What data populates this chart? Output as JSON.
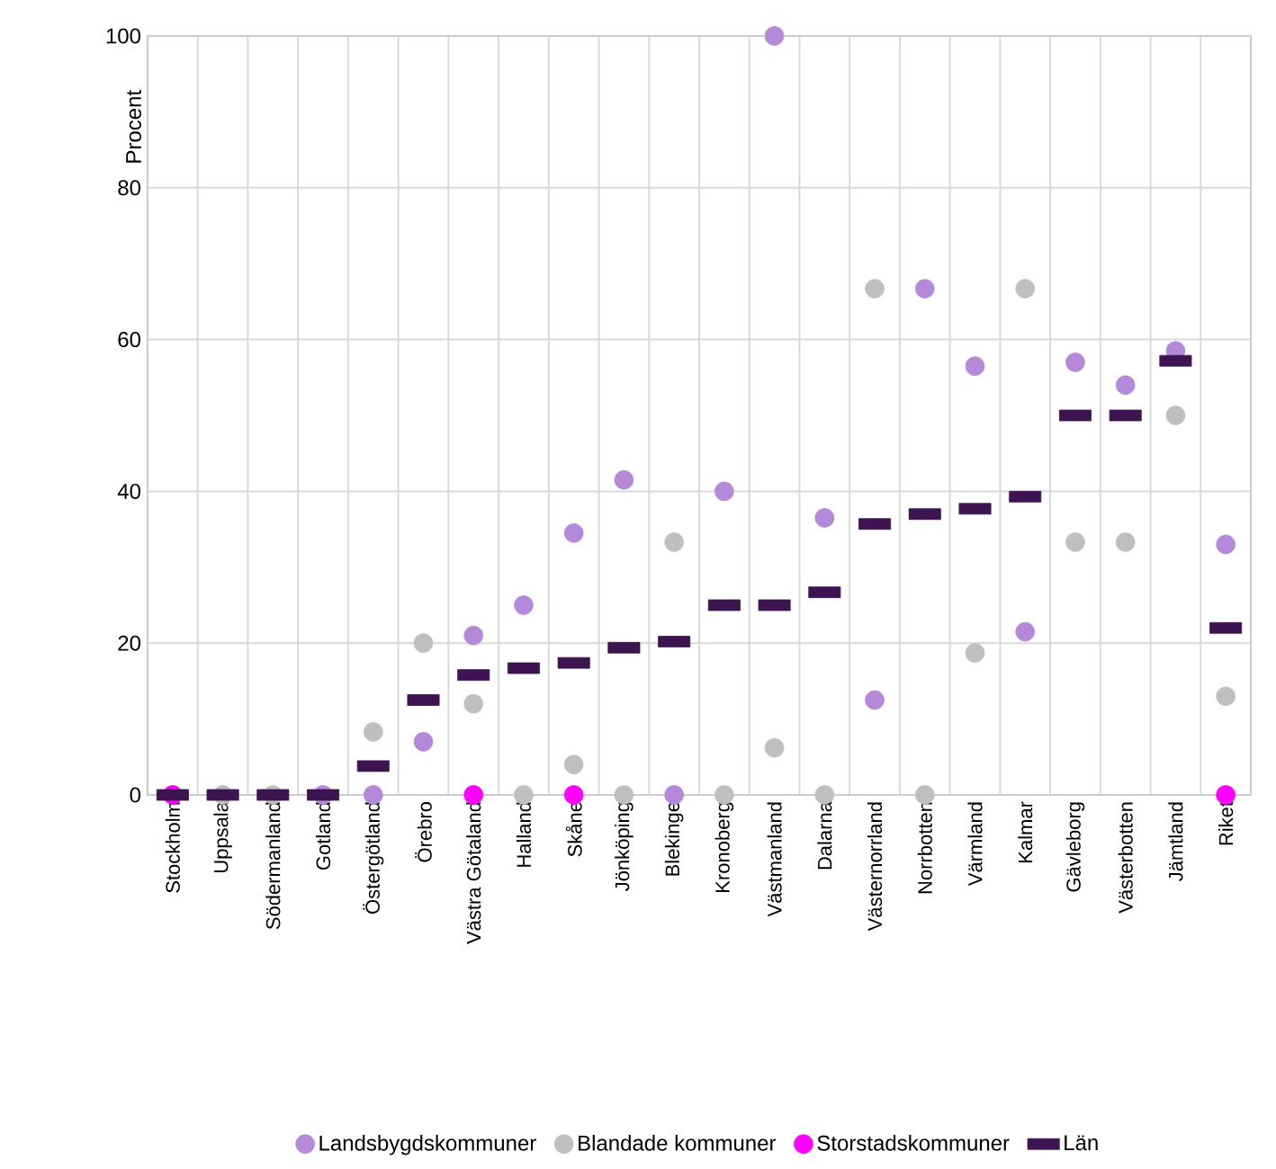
{
  "chart_data": {
    "type": "scatter",
    "ylabel": "Procent",
    "categories": [
      "Stockholm",
      "Uppsala",
      "Södermanland",
      "Gotland",
      "Östergötland",
      "Örebro",
      "Västra Götaland",
      "Halland",
      "Skåne",
      "Jönköping",
      "Blekinge",
      "Kronoberg",
      "Västmanland",
      "Dalarna",
      "Västernorrland",
      "Norrbotten",
      "Värmland",
      "Kalmar",
      "Gävleborg",
      "Västerbotten",
      "Jämtland",
      "Riket"
    ],
    "series": [
      {
        "name": "Landsbygdskommuner",
        "color": "#b489d9",
        "marker": "circle",
        "values": [
          null,
          null,
          null,
          0,
          0,
          7,
          21,
          25,
          34.5,
          41.5,
          0,
          40,
          100,
          36.5,
          12.5,
          66.7,
          56.5,
          21.5,
          57,
          54,
          58.5,
          33
        ]
      },
      {
        "name": "Blandade kommuner",
        "color": "#bfbfbf",
        "marker": "circle",
        "values": [
          null,
          0,
          0,
          null,
          8.3,
          20,
          12,
          0,
          4,
          0,
          33.3,
          0,
          6.2,
          0,
          66.7,
          0,
          18.7,
          66.7,
          33.3,
          33.3,
          50,
          13
        ]
      },
      {
        "name": "Storstadskommuner",
        "color": "#ff00ff",
        "marker": "circle",
        "values": [
          0,
          null,
          null,
          null,
          null,
          null,
          0,
          null,
          0,
          null,
          null,
          null,
          null,
          null,
          null,
          null,
          null,
          null,
          null,
          null,
          null,
          0
        ]
      },
      {
        "name": "Län",
        "color": "#3d1450",
        "marker": "square",
        "values": [
          0,
          0,
          0,
          0,
          3.8,
          12.5,
          15.8,
          16.7,
          17.4,
          19.4,
          20.2,
          25,
          25,
          26.7,
          35.7,
          37,
          37.7,
          39.3,
          50,
          50,
          57.2,
          22
        ]
      }
    ],
    "ylim": [
      0,
      100
    ],
    "yticks": [
      0,
      20,
      40,
      60,
      80,
      100
    ],
    "grid": true,
    "legend": "bottom"
  }
}
